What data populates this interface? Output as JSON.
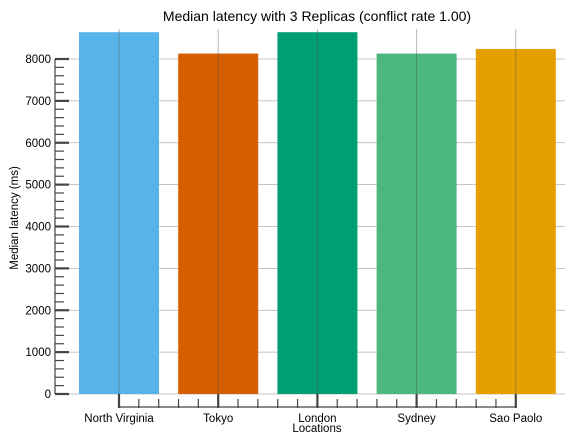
{
  "chart_data": {
    "type": "bar",
    "title": "Median latency with 3 Replicas (conflict rate 1.00)",
    "xlabel": "Locations",
    "ylabel": "Median latency (ms)",
    "categories": [
      "North Virginia",
      "Tokyo",
      "London",
      "Sydney",
      "Sao Paolo"
    ],
    "values": [
      8640,
      8130,
      8640,
      8130,
      8240
    ],
    "colors": [
      "#56B4E9",
      "#D55E00",
      "#009E73",
      "#4CB77E",
      "#E69F00"
    ],
    "ylim": [
      0,
      8600
    ],
    "yticks": [
      0,
      1000,
      2000,
      3000,
      4000,
      5000,
      6000,
      7000,
      8000
    ],
    "grid": true
  }
}
